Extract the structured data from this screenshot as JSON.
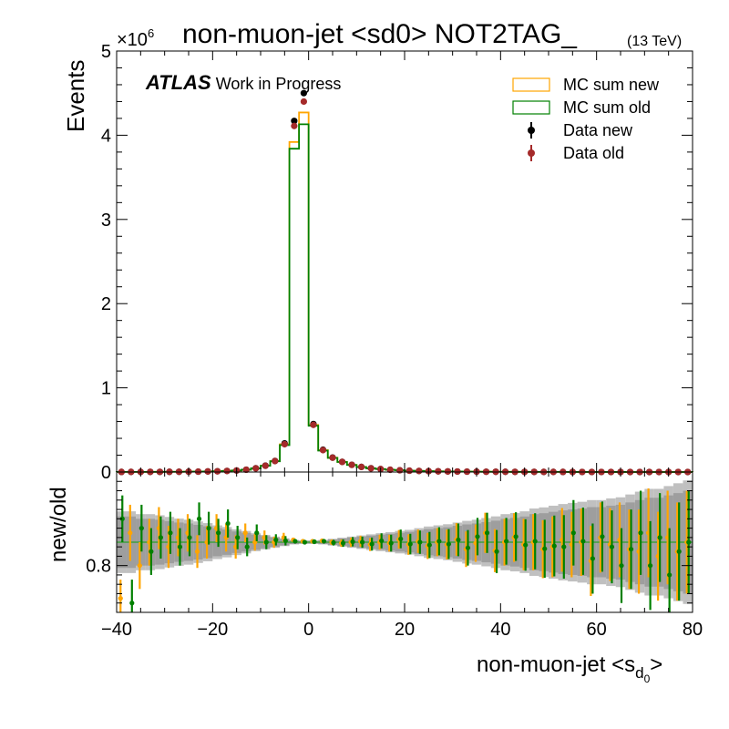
{
  "chart_data": {
    "type": "histogram",
    "title": "non-muon-jet <sd0> NOT2TAG_",
    "energy_label": "(13 TeV)",
    "atlas_label": "ATLAS",
    "atlas_sublabel": "Work in Progress",
    "xlabel": "non-muon-jet <s",
    "xlabel_sub": "d",
    "xlabel_subsub": "0",
    "xlabel_close": ">",
    "xlim": [
      -40,
      80
    ],
    "x_ticks": [
      "−40",
      "−20",
      "0",
      "20",
      "40",
      "60",
      "80"
    ],
    "top_panel": {
      "ylabel": "Events",
      "ylim": [
        0,
        5
      ],
      "y_multiplier": "×10",
      "y_multiplier_exp": "6",
      "y_ticks": [
        "0",
        "1",
        "2",
        "3",
        "4",
        "5"
      ],
      "legend": [
        "MC sum new",
        "MC sum old",
        "Data new",
        "Data old"
      ],
      "legend_position": "top-right",
      "bin_edges": [
        -40,
        -38,
        -36,
        -34,
        -32,
        -30,
        -28,
        -26,
        -24,
        -22,
        -20,
        -18,
        -16,
        -14,
        -12,
        -10,
        -8,
        -6,
        -4,
        -2,
        0,
        2,
        4,
        6,
        8,
        10,
        12,
        14,
        16,
        18,
        20,
        22,
        24,
        26,
        28,
        30,
        32,
        34,
        36,
        38,
        40,
        42,
        44,
        46,
        48,
        50,
        52,
        54,
        56,
        58,
        60,
        62,
        64,
        66,
        68,
        70,
        72,
        74,
        76,
        78,
        80
      ],
      "series": [
        {
          "name": "MC sum new",
          "color": "#ffa500",
          "style": "step",
          "values": [
            0.001,
            0.0012,
            0.0014,
            0.0017,
            0.002,
            0.0025,
            0.003,
            0.004,
            0.005,
            0.007,
            0.009,
            0.013,
            0.018,
            0.028,
            0.045,
            0.075,
            0.13,
            0.33,
            3.92,
            4.27,
            0.56,
            0.26,
            0.17,
            0.12,
            0.085,
            0.06,
            0.045,
            0.035,
            0.027,
            0.021,
            0.016,
            0.013,
            0.01,
            0.0085,
            0.007,
            0.006,
            0.005,
            0.0042,
            0.0036,
            0.003,
            0.0026,
            0.0022,
            0.0019,
            0.0016,
            0.0014,
            0.0012,
            0.001,
            0.0009,
            0.0008,
            0.0007,
            0.0006,
            0.0005,
            0.00045,
            0.0004,
            0.00035,
            0.0003,
            0.00027,
            0.00024,
            0.00021,
            0.00019
          ]
        },
        {
          "name": "MC sum old",
          "color": "#008000",
          "style": "step",
          "values": [
            0.001,
            0.0012,
            0.0014,
            0.0017,
            0.002,
            0.0025,
            0.003,
            0.004,
            0.005,
            0.007,
            0.009,
            0.013,
            0.018,
            0.028,
            0.044,
            0.074,
            0.128,
            0.32,
            3.84,
            4.13,
            0.55,
            0.255,
            0.168,
            0.119,
            0.084,
            0.059,
            0.044,
            0.035,
            0.027,
            0.021,
            0.016,
            0.013,
            0.01,
            0.0085,
            0.007,
            0.006,
            0.005,
            0.0042,
            0.0036,
            0.003,
            0.0026,
            0.0022,
            0.0019,
            0.0016,
            0.0014,
            0.0012,
            0.001,
            0.0009,
            0.0008,
            0.0007,
            0.0006,
            0.0005,
            0.00045,
            0.0004,
            0.00035,
            0.0003,
            0.00027,
            0.00024,
            0.00021,
            0.00019
          ]
        },
        {
          "name": "Data new",
          "color": "#000000",
          "style": "points",
          "values": [
            0.001,
            0.0012,
            0.0014,
            0.0017,
            0.002,
            0.0025,
            0.003,
            0.004,
            0.005,
            0.007,
            0.009,
            0.013,
            0.018,
            0.028,
            0.045,
            0.076,
            0.132,
            0.34,
            4.17,
            4.5,
            0.57,
            0.265,
            0.172,
            0.121,
            0.086,
            0.061,
            0.045,
            0.035,
            0.027,
            0.021,
            0.016,
            0.013,
            0.01,
            0.0085,
            0.007,
            0.006,
            0.005,
            0.0042,
            0.0036,
            0.003,
            0.0026,
            0.0022,
            0.0019,
            0.0016,
            0.0014,
            0.0012,
            0.001,
            0.0009,
            0.0008,
            0.0007,
            0.0006,
            0.0005,
            0.00045,
            0.0004,
            0.00035,
            0.0003,
            0.00027,
            0.00024,
            0.00021,
            0.00019
          ]
        },
        {
          "name": "Data old",
          "color": "#a52a2a",
          "style": "points",
          "values": [
            0.001,
            0.0012,
            0.0014,
            0.0017,
            0.002,
            0.0025,
            0.003,
            0.004,
            0.005,
            0.007,
            0.009,
            0.013,
            0.018,
            0.028,
            0.044,
            0.074,
            0.13,
            0.33,
            4.11,
            4.4,
            0.56,
            0.26,
            0.17,
            0.12,
            0.085,
            0.06,
            0.044,
            0.035,
            0.027,
            0.021,
            0.016,
            0.013,
            0.01,
            0.0085,
            0.007,
            0.006,
            0.005,
            0.0042,
            0.0036,
            0.003,
            0.0026,
            0.0022,
            0.0019,
            0.0016,
            0.0014,
            0.0012,
            0.001,
            0.0009,
            0.0008,
            0.0007,
            0.0006,
            0.0005,
            0.00045,
            0.0004,
            0.00035,
            0.0003,
            0.00027,
            0.00024,
            0.00021,
            0.00019
          ]
        }
      ]
    },
    "ratio_panel": {
      "ylabel": "new/old",
      "ylim": [
        0.7,
        1.0
      ],
      "y_ticks": [
        "0.8"
      ],
      "reference_line": 0.85,
      "bin_centers": [
        -39,
        -37,
        -35,
        -33,
        -31,
        -29,
        -27,
        -25,
        -23,
        -21,
        -19,
        -17,
        -15,
        -13,
        -11,
        -9,
        -7,
        -5,
        -3,
        -1,
        1,
        3,
        5,
        7,
        9,
        11,
        13,
        15,
        17,
        19,
        21,
        23,
        25,
        27,
        29,
        31,
        33,
        35,
        37,
        39,
        41,
        43,
        45,
        47,
        49,
        51,
        53,
        55,
        57,
        59,
        61,
        63,
        65,
        67,
        69,
        71,
        73,
        75,
        77,
        79
      ],
      "band_half_width": [
        0.055,
        0.055,
        0.05,
        0.05,
        0.048,
        0.045,
        0.042,
        0.04,
        0.037,
        0.034,
        0.03,
        0.027,
        0.023,
        0.02,
        0.016,
        0.013,
        0.01,
        0.007,
        0.004,
        0.003,
        0.003,
        0.004,
        0.006,
        0.008,
        0.01,
        0.012,
        0.014,
        0.016,
        0.018,
        0.02,
        0.022,
        0.025,
        0.028,
        0.03,
        0.032,
        0.035,
        0.038,
        0.04,
        0.043,
        0.046,
        0.05,
        0.052,
        0.055,
        0.06,
        0.062,
        0.065,
        0.068,
        0.07,
        0.072,
        0.075,
        0.075,
        0.078,
        0.08,
        0.085,
        0.09,
        0.095,
        0.095,
        0.1,
        0.105,
        0.11
      ],
      "series": [
        {
          "name": "MC sum new",
          "color": "#ffa500",
          "values": [
            0.73,
            0.87,
            0.8,
            0.85,
            0.88,
            0.84,
            0.86,
            0.87,
            0.83,
            0.85,
            0.88,
            0.86,
            0.84,
            0.87,
            0.85,
            0.86,
            0.85,
            0.86,
            0.855,
            0.852,
            0.852,
            0.853,
            0.85,
            0.848,
            0.85,
            0.852,
            0.845,
            0.85,
            0.848,
            0.856,
            0.845,
            0.852,
            0.842,
            0.85,
            0.845,
            0.856,
            0.835,
            0.848,
            0.87,
            0.832,
            0.85,
            0.86,
            0.845,
            0.85,
            0.835,
            0.84,
            0.855,
            0.845,
            0.85,
            0.81,
            0.86,
            0.845,
            0.855,
            0.835,
            0.83,
            0.87,
            0.82,
            0.86,
            0.83,
            0.85
          ],
          "errors": [
            0.04,
            0.06,
            0.05,
            0.05,
            0.045,
            0.045,
            0.04,
            0.04,
            0.035,
            0.035,
            0.03,
            0.03,
            0.025,
            0.02,
            0.018,
            0.015,
            0.012,
            0.01,
            0.004,
            0.003,
            0.003,
            0.004,
            0.006,
            0.008,
            0.01,
            0.012,
            0.014,
            0.016,
            0.018,
            0.02,
            0.022,
            0.025,
            0.028,
            0.03,
            0.032,
            0.035,
            0.038,
            0.04,
            0.043,
            0.046,
            0.05,
            0.052,
            0.055,
            0.06,
            0.062,
            0.065,
            0.068,
            0.07,
            0.072,
            0.075,
            0.075,
            0.078,
            0.08,
            0.085,
            0.09,
            0.095,
            0.095,
            0.1,
            0.105,
            0.11
          ]
        },
        {
          "name": "MC sum old",
          "color": "#008000",
          "values": [
            0.9,
            0.72,
            0.88,
            0.83,
            0.86,
            0.87,
            0.84,
            0.86,
            0.9,
            0.88,
            0.87,
            0.89,
            0.86,
            0.84,
            0.87,
            0.85,
            0.855,
            0.853,
            0.852,
            0.85,
            0.851,
            0.852,
            0.849,
            0.848,
            0.851,
            0.85,
            0.846,
            0.853,
            0.848,
            0.857,
            0.846,
            0.85,
            0.844,
            0.852,
            0.846,
            0.855,
            0.838,
            0.862,
            0.87,
            0.83,
            0.852,
            0.862,
            0.844,
            0.852,
            0.836,
            0.842,
            0.84,
            0.87,
            0.852,
            0.815,
            0.862,
            0.84,
            0.8,
            0.835,
            0.87,
            0.8,
            0.86,
            0.78,
            0.83,
            0.85
          ],
          "errors": [
            0.05,
            0.05,
            0.05,
            0.05,
            0.045,
            0.045,
            0.04,
            0.04,
            0.035,
            0.035,
            0.03,
            0.03,
            0.025,
            0.02,
            0.018,
            0.015,
            0.012,
            0.01,
            0.004,
            0.003,
            0.003,
            0.004,
            0.006,
            0.008,
            0.01,
            0.012,
            0.014,
            0.016,
            0.018,
            0.02,
            0.022,
            0.025,
            0.028,
            0.03,
            0.032,
            0.035,
            0.038,
            0.04,
            0.043,
            0.046,
            0.05,
            0.052,
            0.055,
            0.06,
            0.062,
            0.065,
            0.068,
            0.07,
            0.072,
            0.075,
            0.075,
            0.078,
            0.08,
            0.085,
            0.09,
            0.095,
            0.095,
            0.1,
            0.105,
            0.11
          ]
        }
      ]
    }
  }
}
